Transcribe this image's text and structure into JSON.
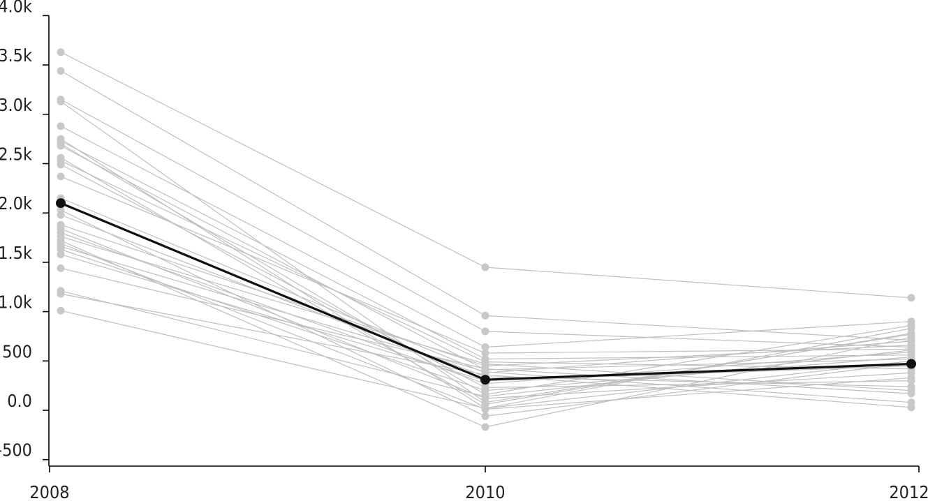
{
  "chart_data": {
    "type": "line",
    "title": "",
    "xlabel": "",
    "ylabel": "",
    "x": [
      "2008",
      "2010",
      "2012"
    ],
    "ylim": [
      -550,
      4000
    ],
    "y_ticks": [
      -500,
      0,
      500,
      1000,
      1500,
      2000,
      2500,
      3000,
      3500,
      4000
    ],
    "y_tick_labels": [
      "-500",
      "0.0",
      "500",
      "1.0k",
      "1.5k",
      "2.0k",
      "2.5k",
      "3.0k",
      "3.5k",
      "4.0k"
    ],
    "x_tick_labels": [
      "2008",
      "2010",
      "2012"
    ],
    "grid": false,
    "colors": {
      "background_series": "#bfbfbf",
      "background_points": "#c8c8c8",
      "highlight": "#111111"
    },
    "highlight_series": {
      "values": [
        2100,
        310,
        470
      ]
    },
    "series": [
      {
        "values": [
          3630,
          1450,
          1140
        ]
      },
      {
        "values": [
          3440,
          960,
          710
        ]
      },
      {
        "values": [
          3150,
          800,
          640
        ]
      },
      {
        "values": [
          3130,
          80,
          770
        ]
      },
      {
        "values": [
          2880,
          640,
          900
        ]
      },
      {
        "values": [
          2750,
          20,
          830
        ]
      },
      {
        "values": [
          2730,
          520,
          560
        ]
      },
      {
        "values": [
          2700,
          160,
          860
        ]
      },
      {
        "values": [
          2680,
          410,
          520
        ]
      },
      {
        "values": [
          2560,
          60,
          780
        ]
      },
      {
        "values": [
          2530,
          490,
          420
        ]
      },
      {
        "values": [
          2490,
          230,
          300
        ]
      },
      {
        "values": [
          2370,
          580,
          620
        ]
      },
      {
        "values": [
          2150,
          380,
          700
        ]
      },
      {
        "values": [
          2030,
          -60,
          480
        ]
      },
      {
        "values": [
          1980,
          340,
          240
        ]
      },
      {
        "values": [
          1880,
          450,
          660
        ]
      },
      {
        "values": [
          1840,
          120,
          380
        ]
      },
      {
        "values": [
          1800,
          270,
          590
        ]
      },
      {
        "values": [
          1760,
          470,
          200
        ]
      },
      {
        "values": [
          1720,
          -170,
          740
        ]
      },
      {
        "values": [
          1690,
          10,
          330
        ]
      },
      {
        "values": [
          1660,
          390,
          80
        ]
      },
      {
        "values": [
          1630,
          200,
          540
        ]
      },
      {
        "values": [
          1580,
          300,
          450
        ]
      },
      {
        "values": [
          1440,
          420,
          170
        ]
      },
      {
        "values": [
          1210,
          140,
          610
        ]
      },
      {
        "values": [
          1180,
          360,
          30
        ]
      },
      {
        "values": [
          1010,
          20,
          500
        ]
      }
    ]
  }
}
